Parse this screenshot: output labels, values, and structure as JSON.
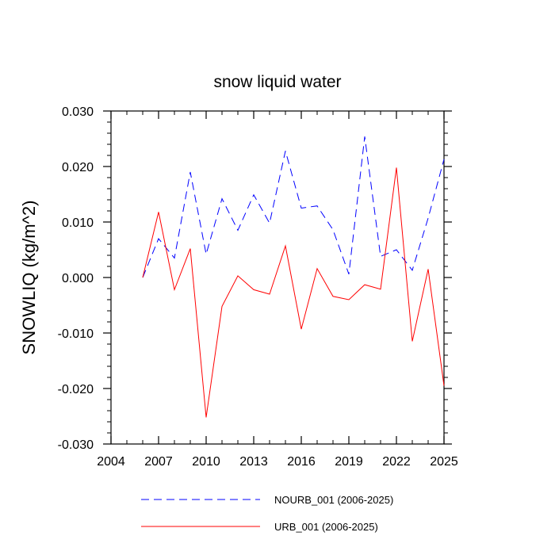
{
  "chart_data": {
    "type": "line",
    "title": "snow liquid water",
    "xlabel": "",
    "ylabel": "SNOWLIQ  (kg/m^2)",
    "xlim": [
      2004,
      2025
    ],
    "ylim": [
      -0.03,
      0.03
    ],
    "x_ticks": [
      2004,
      2007,
      2010,
      2013,
      2016,
      2019,
      2022,
      2025
    ],
    "x_tick_labels": [
      "2004",
      "2007",
      "2010",
      "2013",
      "2016",
      "2019",
      "2022",
      "2025"
    ],
    "y_ticks": [
      -0.03,
      -0.02,
      -0.01,
      0.0,
      0.01,
      0.02,
      0.03
    ],
    "y_tick_labels": [
      "-0.030",
      "-0.020",
      "-0.010",
      "0.000",
      "0.010",
      "0.020",
      "0.030"
    ],
    "grid": false,
    "legend_position": "bottom",
    "x": [
      2006,
      2007,
      2008,
      2009,
      2010,
      2011,
      2012,
      2013,
      2014,
      2015,
      2016,
      2017,
      2018,
      2019,
      2020,
      2021,
      2022,
      2023,
      2024,
      2025
    ],
    "series": [
      {
        "name": "NOURB_001 (2006-2025)",
        "color": "#0000ff",
        "style": "dashed",
        "values": [
          0.0,
          0.007,
          0.0035,
          0.019,
          0.0042,
          0.0142,
          0.0085,
          0.0149,
          0.0098,
          0.0228,
          0.0125,
          0.0129,
          0.0086,
          0.0006,
          0.0254,
          0.0038,
          0.005,
          0.0013,
          0.0107,
          0.0213
        ]
      },
      {
        "name": "URB_001 (2006-2025)",
        "color": "#ff0000",
        "style": "solid",
        "values": [
          0.0,
          0.0118,
          -0.0022,
          0.0052,
          -0.0252,
          -0.0052,
          0.0003,
          -0.0022,
          -0.003,
          0.0057,
          -0.0093,
          0.0016,
          -0.0034,
          -0.004,
          -0.0013,
          -0.0021,
          0.0198,
          -0.0115,
          0.0015,
          -0.0195
        ]
      }
    ]
  }
}
